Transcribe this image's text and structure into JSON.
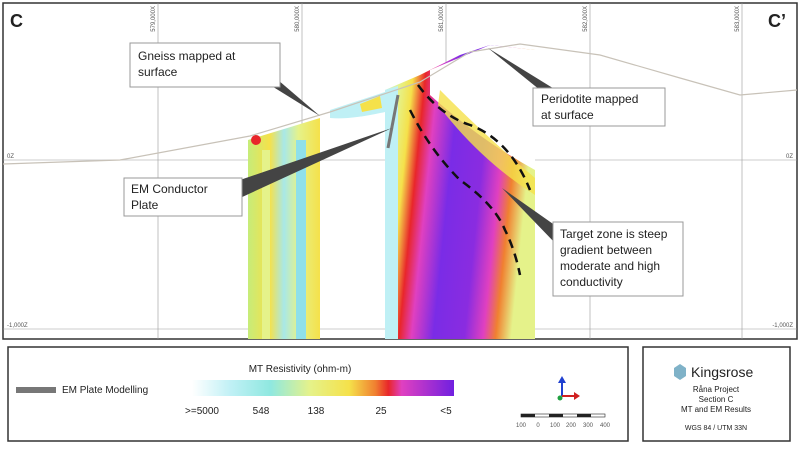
{
  "section": {
    "left_label": "C",
    "right_label": "C’",
    "eastings": [
      "579,000X",
      "580,000X",
      "581,000X",
      "582,000X",
      "583,000X"
    ],
    "elevations_left": [
      "0Z",
      "-1,000Z"
    ],
    "elevations_right": [
      "0Z",
      "-1,000Z"
    ]
  },
  "callouts": [
    {
      "lines": [
        "Gneiss mapped at",
        "surface"
      ]
    },
    {
      "lines": [
        "EM Conductor",
        "Plate"
      ]
    },
    {
      "lines": [
        "Peridotite mapped",
        "at surface"
      ]
    },
    {
      "lines": [
        "Target zone is steep",
        "gradient between",
        "moderate and high",
        "conductivity"
      ]
    }
  ],
  "legend": {
    "em_plate": "EM Plate Modelling",
    "title": "MT Resistivity (ohm-m)",
    "labels": [
      ">=5000",
      "548",
      "138",
      "25",
      "<5"
    ]
  },
  "scale_bar": {
    "labels": [
      "100",
      "0",
      "100",
      "200",
      "300",
      "400"
    ]
  },
  "info": {
    "brand": "Kingsrose",
    "lines": [
      "Råna Project",
      "Section C",
      "MT and EM Results"
    ],
    "crs": "WGS 84 / UTM 33N"
  }
}
